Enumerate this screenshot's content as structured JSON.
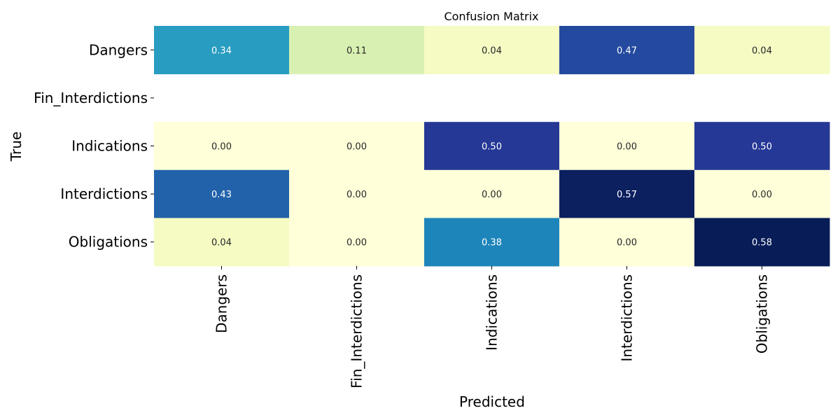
{
  "chart_data": {
    "type": "heatmap",
    "title": "Confusion Matrix",
    "xlabel": "Predicted",
    "ylabel": "True",
    "x_categories": [
      "Dangers",
      "Fin_Interdictions",
      "Indications",
      "Interdictions",
      "Obligations"
    ],
    "y_categories": [
      "Dangers",
      "Fin_Interdictions",
      "Indications",
      "Interdictions",
      "Obligations"
    ],
    "values": [
      [
        0.34,
        0.11,
        0.04,
        0.47,
        0.04
      ],
      [
        null,
        null,
        null,
        null,
        null
      ],
      [
        0.0,
        0.0,
        0.5,
        0.0,
        0.5
      ],
      [
        0.43,
        0.0,
        0.0,
        0.57,
        0.0
      ],
      [
        0.04,
        0.0,
        0.38,
        0.0,
        0.58
      ]
    ],
    "value_format": "0.00",
    "colormap": "YlGnBu",
    "color_range": [
      0,
      0.58
    ],
    "colorbar": false
  }
}
